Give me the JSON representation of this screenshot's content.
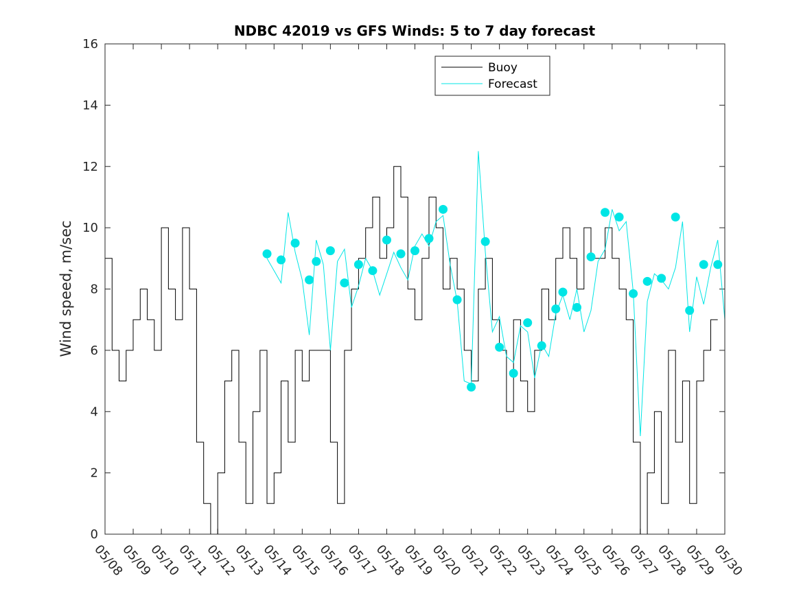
{
  "chart_data": {
    "type": "line",
    "title": "NDBC 42019 vs GFS Winds: 5 to 7 day forecast",
    "xlabel": "",
    "ylabel": "Wind speed, m/sec",
    "ylim": [
      0,
      16
    ],
    "yticks": [
      0,
      2,
      4,
      6,
      8,
      10,
      12,
      14,
      16
    ],
    "xlim_day": [
      0,
      22
    ],
    "xtick_labels": [
      "05/08",
      "05/09",
      "05/10",
      "05/11",
      "05/12",
      "05/13",
      "05/14",
      "05/15",
      "05/16",
      "05/17",
      "05/18",
      "05/19",
      "05/20",
      "05/21",
      "05/22",
      "05/23",
      "05/24",
      "05/25",
      "05/26",
      "05/27",
      "05/28",
      "05/29",
      "05/30"
    ],
    "legend": {
      "placement": "top-center",
      "entries": [
        {
          "name": "Buoy",
          "color": "#000000"
        },
        {
          "name": "Forecast",
          "color": "#00e5e5"
        }
      ]
    },
    "series": [
      {
        "name": "Buoy",
        "color": "#000000",
        "x": [
          "05/08 00:00",
          "05/08 06:00",
          "05/08 12:00",
          "05/08 18:00",
          "05/09 00:00",
          "05/09 06:00",
          "05/09 12:00",
          "05/09 18:00",
          "05/10 00:00",
          "05/10 06:00",
          "05/10 12:00",
          "05/10 18:00",
          "05/11 00:00",
          "05/11 06:00",
          "05/11 12:00",
          "05/11 18:00",
          "05/12 00:00",
          "05/12 06:00",
          "05/12 12:00",
          "05/12 18:00",
          "05/13 00:00",
          "05/13 06:00",
          "05/13 12:00",
          "05/13 18:00",
          "05/14 00:00",
          "05/14 06:00",
          "05/14 12:00",
          "05/14 18:00",
          "05/15 00:00",
          "05/15 06:00",
          "05/15 12:00",
          "05/15 18:00",
          "05/16 00:00",
          "05/16 06:00",
          "05/16 12:00",
          "05/16 18:00",
          "05/17 00:00",
          "05/17 06:00",
          "05/17 12:00",
          "05/17 18:00",
          "05/18 00:00",
          "05/18 06:00",
          "05/18 12:00",
          "05/18 18:00",
          "05/19 00:00",
          "05/19 06:00",
          "05/19 12:00",
          "05/19 18:00",
          "05/20 00:00",
          "05/20 06:00",
          "05/20 12:00",
          "05/20 18:00",
          "05/21 00:00",
          "05/21 06:00",
          "05/21 12:00",
          "05/21 18:00",
          "05/22 00:00",
          "05/22 06:00",
          "05/22 12:00",
          "05/22 18:00",
          "05/23 00:00",
          "05/23 06:00",
          "05/23 12:00",
          "05/23 18:00",
          "05/24 00:00",
          "05/24 06:00",
          "05/24 12:00",
          "05/24 18:00",
          "05/25 00:00",
          "05/25 06:00",
          "05/25 12:00",
          "05/25 18:00",
          "05/26 00:00",
          "05/26 06:00",
          "05/26 12:00",
          "05/26 18:00",
          "05/27 00:00",
          "05/27 06:00",
          "05/27 12:00",
          "05/27 18:00",
          "05/28 00:00",
          "05/28 06:00",
          "05/28 12:00",
          "05/28 18:00",
          "05/29 00:00",
          "05/29 06:00",
          "05/29 12:00"
        ],
        "values": [
          9,
          6,
          5,
          6,
          7,
          8,
          7,
          6,
          10,
          8,
          7,
          10,
          8,
          3,
          1,
          0,
          2,
          5,
          6,
          3,
          1,
          4,
          6,
          1,
          2,
          5,
          3,
          6,
          5,
          6,
          6,
          6,
          3,
          1,
          6,
          8,
          9,
          10,
          11,
          9,
          10,
          12,
          11,
          8,
          7,
          9,
          11,
          10,
          8,
          9,
          8,
          6,
          5,
          8,
          9,
          7,
          6,
          4,
          7,
          5,
          4,
          6,
          8,
          7,
          9,
          10,
          9,
          8,
          10,
          9,
          9,
          10,
          9,
          8,
          7,
          3,
          0,
          2,
          4,
          1,
          6,
          3,
          5,
          1,
          5,
          6,
          7
        ]
      },
      {
        "name": "Forecast",
        "color": "#00e5e5",
        "x": [
          "05/13 18:00",
          "05/14 00:00",
          "05/14 06:00",
          "05/14 12:00",
          "05/14 18:00",
          "05/15 00:00",
          "05/15 06:00",
          "05/15 12:00",
          "05/15 18:00",
          "05/16 00:00",
          "05/16 06:00",
          "05/16 12:00",
          "05/16 18:00",
          "05/17 00:00",
          "05/17 06:00",
          "05/17 12:00",
          "05/17 18:00",
          "05/18 00:00",
          "05/18 06:00",
          "05/18 12:00",
          "05/18 18:00",
          "05/19 00:00",
          "05/19 06:00",
          "05/19 12:00",
          "05/19 18:00",
          "05/20 00:00",
          "05/20 06:00",
          "05/20 12:00",
          "05/20 18:00",
          "05/21 00:00",
          "05/21 06:00",
          "05/21 12:00",
          "05/21 18:00",
          "05/22 00:00",
          "05/22 06:00",
          "05/22 12:00",
          "05/22 18:00",
          "05/23 00:00",
          "05/23 06:00",
          "05/23 12:00",
          "05/23 18:00",
          "05/24 00:00",
          "05/24 06:00",
          "05/24 12:00",
          "05/24 18:00",
          "05/25 00:00",
          "05/25 06:00",
          "05/25 12:00",
          "05/25 18:00",
          "05/26 00:00",
          "05/26 06:00",
          "05/26 12:00",
          "05/26 18:00",
          "05/27 00:00",
          "05/27 06:00",
          "05/27 12:00",
          "05/27 18:00",
          "05/28 00:00",
          "05/28 06:00",
          "05/28 12:00",
          "05/28 18:00",
          "05/29 00:00",
          "05/29 06:00",
          "05/29 12:00",
          "05/29 18:00",
          "05/30 00:00"
        ],
        "values": [
          9.0,
          8.6,
          8.2,
          10.5,
          9.2,
          8.3,
          6.5,
          9.6,
          8.8,
          6.0,
          8.9,
          9.3,
          7.4,
          8.1,
          9.0,
          8.6,
          7.8,
          8.5,
          9.2,
          8.7,
          8.3,
          9.4,
          9.8,
          9.4,
          10.2,
          10.4,
          8.8,
          7.6,
          5.0,
          4.9,
          12.5,
          9.2,
          6.6,
          7.1,
          5.8,
          5.6,
          6.8,
          6.6,
          5.1,
          6.2,
          5.8,
          7.2,
          7.8,
          7.0,
          8.0,
          6.6,
          7.3,
          8.9,
          9.3,
          10.6,
          9.9,
          10.2,
          7.9,
          3.2,
          7.6,
          8.5,
          8.3,
          8.0,
          8.7,
          10.2,
          6.6,
          8.4,
          7.5,
          8.7,
          9.6,
          7.0
        ]
      }
    ],
    "markers": {
      "name": "Forecast",
      "color": "#00e5e5",
      "x": [
        "05/13 18:00",
        "05/14 06:00",
        "05/14 18:00",
        "05/15 06:00",
        "05/15 12:00",
        "05/16 00:00",
        "05/16 12:00",
        "05/17 00:00",
        "05/17 12:00",
        "05/18 00:00",
        "05/18 12:00",
        "05/19 00:00",
        "05/19 12:00",
        "05/20 00:00",
        "05/20 12:00",
        "05/21 00:00",
        "05/21 12:00",
        "05/22 00:00",
        "05/22 12:00",
        "05/23 00:00",
        "05/23 12:00",
        "05/24 00:00",
        "05/24 06:00",
        "05/24 18:00",
        "05/25 06:00",
        "05/25 18:00",
        "05/26 06:00",
        "05/26 18:00",
        "05/27 06:00",
        "05/27 18:00",
        "05/28 06:00",
        "05/28 18:00",
        "05/29 06:00",
        "05/29 18:00"
      ],
      "values": [
        9.15,
        8.95,
        9.5,
        8.3,
        8.9,
        9.25,
        8.2,
        8.8,
        8.6,
        9.6,
        9.15,
        9.25,
        9.65,
        10.6,
        7.65,
        4.8,
        9.55,
        6.1,
        5.25,
        6.9,
        6.15,
        7.35,
        7.9,
        7.4,
        9.05,
        10.5,
        10.35,
        7.85,
        8.25,
        8.35,
        10.35,
        7.3,
        8.8,
        8.8
      ]
    }
  }
}
